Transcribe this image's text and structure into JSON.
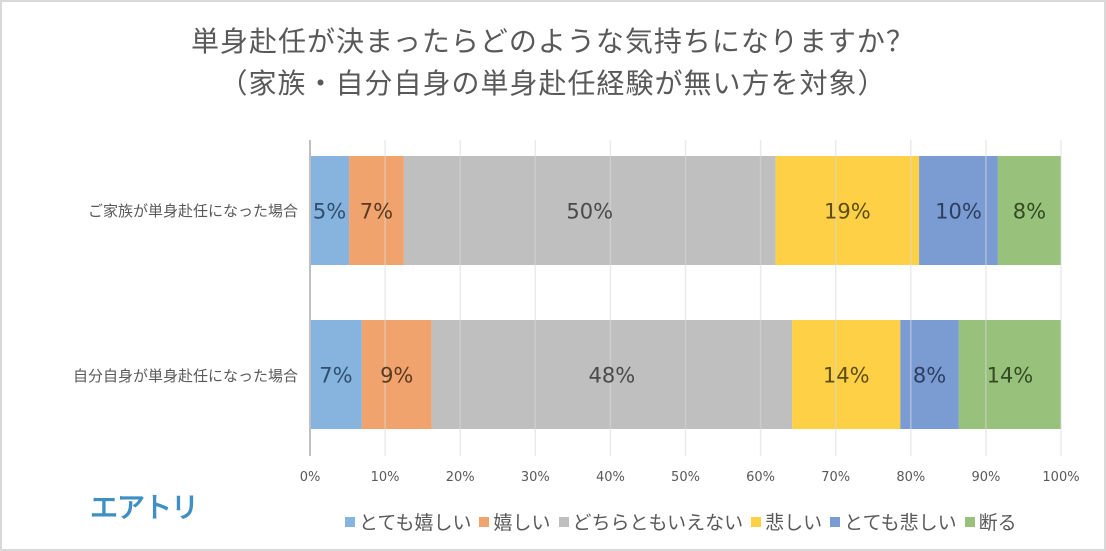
{
  "chart_data": {
    "type": "bar",
    "orientation": "horizontal",
    "stacked": "percent",
    "title": [
      "単身赴任が決まったらどのような気持ちになりますか？",
      "（家族・自分自身の単身赴任経験が無い方を対象）"
    ],
    "categories": [
      "ご家族が単身赴任になった場合",
      "自分自身が単身赴任になった場合"
    ],
    "series": [
      {
        "name": "とても嬉しい",
        "color": "#86b4df",
        "label_color": "#2f4f6e",
        "values": [
          5.2,
          6.9
        ],
        "labels": [
          "5%",
          "7%"
        ]
      },
      {
        "name": "嬉しい",
        "color": "#f0a36c",
        "label_color": "#5a3a22",
        "values": [
          7.3,
          9.3
        ],
        "labels": [
          "7%",
          "9%"
        ]
      },
      {
        "name": "どちらともいえない",
        "color": "#bfbfbf",
        "label_color": "#4a4a4a",
        "values": [
          49.5,
          48.0
        ],
        "labels": [
          "50%",
          "48%"
        ]
      },
      {
        "name": "悲しい",
        "color": "#fdd046",
        "label_color": "#5e4d14",
        "values": [
          19.1,
          14.4
        ],
        "labels": [
          "19%",
          "14%"
        ]
      },
      {
        "name": "とても悲しい",
        "color": "#7b9cd3",
        "label_color": "#2c3f60",
        "values": [
          10.5,
          7.8
        ],
        "labels": [
          "10%",
          "8%"
        ]
      },
      {
        "name": "断る",
        "color": "#98c27c",
        "label_color": "#334a24",
        "values": [
          8.4,
          13.6
        ],
        "labels": [
          "8%",
          "14%"
        ]
      }
    ],
    "xlim": [
      0,
      100
    ],
    "xticks": [
      "0%",
      "10%",
      "20%",
      "30%",
      "40%",
      "50%",
      "60%",
      "70%",
      "80%",
      "90%",
      "100%"
    ],
    "grid": true,
    "legend_position": "bottom"
  },
  "logo": "エアトリ",
  "colors": {
    "text": "#595959",
    "grid": "#d9d9d9",
    "logo": "#3d8fc4"
  }
}
